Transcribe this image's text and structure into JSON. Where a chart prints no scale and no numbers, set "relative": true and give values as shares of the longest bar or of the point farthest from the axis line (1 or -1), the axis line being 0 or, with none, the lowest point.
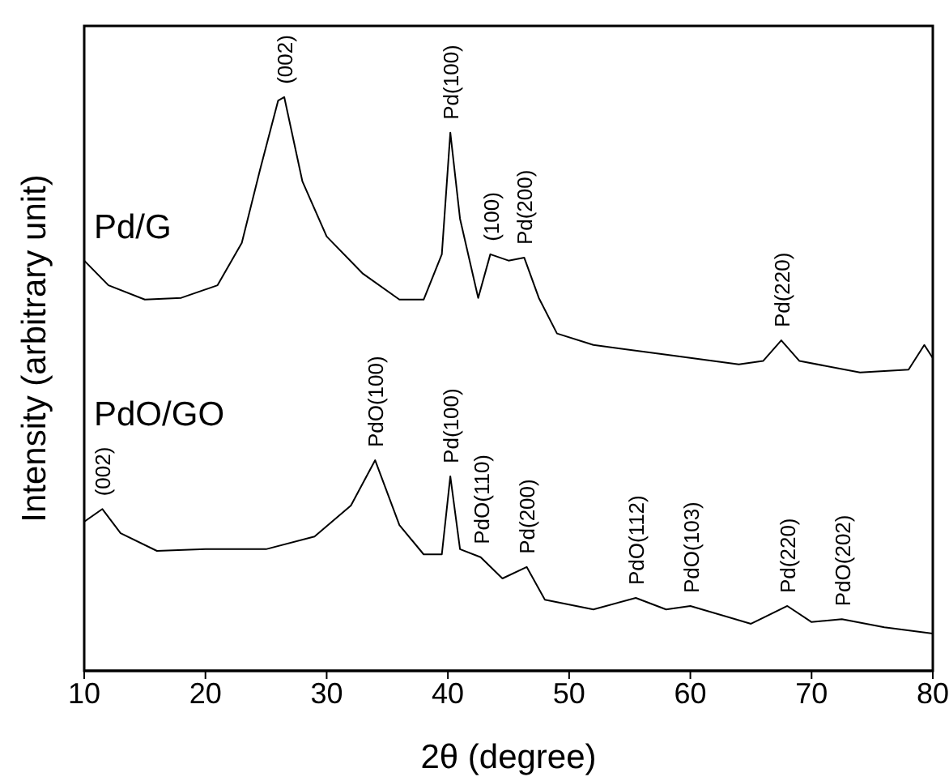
{
  "chart_data": {
    "type": "line",
    "relative": true,
    "xlabel": "2θ (degree)",
    "ylabel": "Intensity (arbitrary unit)",
    "xlim": [
      10,
      80
    ],
    "xticks": [
      10,
      20,
      30,
      40,
      50,
      60,
      70,
      80
    ],
    "legend": false,
    "grid": false,
    "marker": "none",
    "line_style": "solid",
    "series": [
      {
        "name": "Pd/G",
        "color": "#000000",
        "x": [
          10,
          12,
          15,
          18,
          21,
          23,
          24.5,
          26,
          26.5,
          28,
          30,
          33,
          36,
          38,
          39.5,
          40.2,
          41,
          42.5,
          43.5,
          45,
          46.3,
          47.5,
          49,
          52,
          58,
          64,
          66,
          67.5,
          69,
          74,
          78,
          79.3,
          80
        ],
        "values": [
          0.715,
          0.672,
          0.647,
          0.65,
          0.672,
          0.746,
          0.873,
          0.994,
          1,
          0.853,
          0.757,
          0.692,
          0.647,
          0.647,
          0.726,
          0.938,
          0.788,
          0.65,
          0.726,
          0.715,
          0.72,
          0.65,
          0.588,
          0.568,
          0.551,
          0.534,
          0.54,
          0.576,
          0.54,
          0.52,
          0.525,
          0.568,
          0.545
        ]
      },
      {
        "name": "PdO/GO",
        "color": "#000000",
        "x": [
          10,
          11.5,
          13,
          16,
          20,
          25,
          29,
          32,
          34,
          36,
          38,
          39.5,
          40.2,
          41,
          42.7,
          44.5,
          46.5,
          48,
          52,
          55.5,
          58,
          60,
          65,
          68,
          70,
          72.5,
          76,
          80
        ],
        "values": [
          0.26,
          0.282,
          0.24,
          0.209,
          0.212,
          0.212,
          0.234,
          0.288,
          0.367,
          0.254,
          0.203,
          0.203,
          0.339,
          0.212,
          0.198,
          0.161,
          0.181,
          0.124,
          0.107,
          0.127,
          0.107,
          0.113,
          0.082,
          0.113,
          0.085,
          0.09,
          0.076,
          0.065
        ]
      }
    ],
    "annotations": [
      {
        "text": "(002)",
        "x": 26.5,
        "y": 1
      },
      {
        "text": "Pd(100)",
        "x": 40.2,
        "y": 0.938
      },
      {
        "text": "(100)",
        "x": 43.5,
        "y": 0.726
      },
      {
        "text": "Pd(200)",
        "x": 46.3,
        "y": 0.72
      },
      {
        "text": "Pd(220)",
        "x": 67.5,
        "y": 0.576
      },
      {
        "text": "(002)",
        "x": 11.5,
        "y": 0.282
      },
      {
        "text": "PdO(100)",
        "x": 34,
        "y": 0.367
      },
      {
        "text": "Pd(100)",
        "x": 40.2,
        "y": 0.339
      },
      {
        "text": "PdO(110)",
        "x": 42.7,
        "y": 0.198
      },
      {
        "text": "Pd(200)",
        "x": 46.5,
        "y": 0.181
      },
      {
        "text": "PdO(112)",
        "x": 55.5,
        "y": 0.127
      },
      {
        "text": "PdO(103)",
        "x": 60,
        "y": 0.113
      },
      {
        "text": "Pd(220)",
        "x": 68,
        "y": 0.113
      },
      {
        "text": "PdO(202)",
        "x": 72.5,
        "y": 0.09
      }
    ]
  }
}
